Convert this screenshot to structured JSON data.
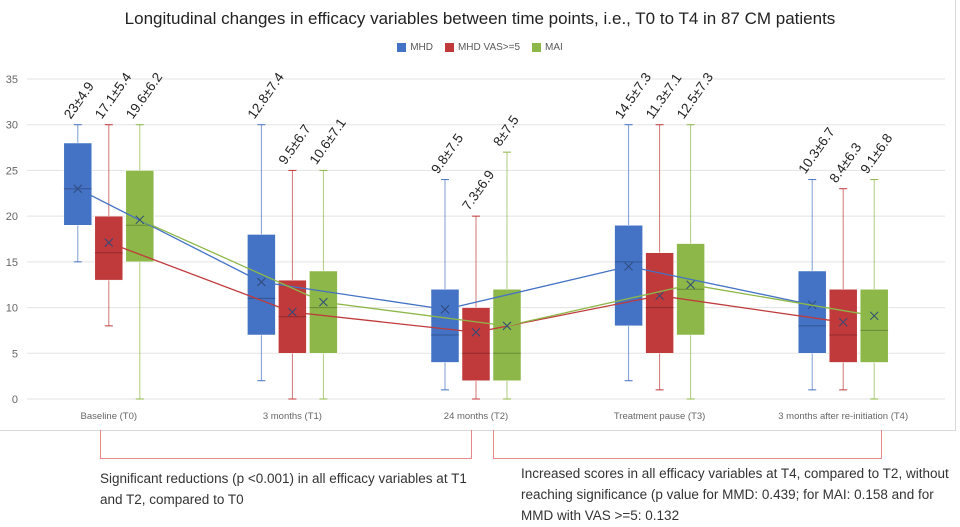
{
  "chart_data": {
    "type": "box",
    "title": "Longitudinal changes in efficacy variables between time points, i.e., T0 to T4 in 87 CM patients",
    "categories": [
      "Baseline (T0)",
      "3 months (T1)",
      "24 months (T2)",
      "Treatment pause (T3)",
      "3 months after re-initiation (T4)"
    ],
    "ylim": [
      0,
      35
    ],
    "yticks": [
      0,
      5,
      10,
      15,
      20,
      25,
      30,
      35
    ],
    "grid": true,
    "legend_position": "top",
    "series": [
      {
        "name": "MHD",
        "color": "#4472c4",
        "min": [
          15,
          2,
          1,
          2,
          1
        ],
        "q1": [
          19,
          7,
          4,
          8,
          5
        ],
        "median": [
          23,
          11,
          7,
          15,
          8
        ],
        "q3": [
          28,
          18,
          12,
          19,
          14
        ],
        "max": [
          30,
          30,
          24,
          30,
          24
        ],
        "mean": [
          23,
          12.8,
          9.8,
          14.5,
          10.3
        ],
        "labels": [
          "23±4.9",
          "12.8±7.4",
          "9.8±7.5",
          "14.5±7.3",
          "10.3±6.7"
        ]
      },
      {
        "name": "MHD VAS>=5",
        "color": "#c0393b",
        "min": [
          8,
          0,
          0,
          1,
          1
        ],
        "q1": [
          13,
          5,
          2,
          5,
          4
        ],
        "median": [
          16,
          9,
          5,
          10,
          7
        ],
        "q3": [
          20,
          13,
          10,
          16,
          12
        ],
        "max": [
          30,
          25,
          20,
          30,
          23
        ],
        "mean": [
          17.1,
          9.5,
          7.3,
          11.3,
          8.4
        ],
        "labels": [
          "17.1±5.4",
          "9.5±6.7",
          "7.3±6.9",
          "11.3±7.1",
          "8.4±6.3"
        ]
      },
      {
        "name": "MAI",
        "color": "#8db748",
        "min": [
          0,
          0,
          0,
          0,
          0
        ],
        "q1": [
          15,
          5,
          2,
          7,
          4
        ],
        "median": [
          19,
          10,
          5,
          12,
          7.5
        ],
        "q3": [
          25,
          14,
          12,
          17,
          12
        ],
        "max": [
          30,
          25,
          27,
          30,
          24
        ],
        "mean": [
          19.6,
          10.6,
          8,
          12.5,
          9.1
        ],
        "labels": [
          "19.6±6.2",
          "10.6±7.1",
          "8±7.5",
          "12.5±7.3",
          "9.1±6.8"
        ]
      }
    ]
  },
  "annotations": {
    "left": "Significant reductions (p <0.001) in all efficacy variables at T1 and T2, compared to T0",
    "right": "Increased scores in all efficacy variables at T4, compared to T2, without reaching significance (p value for MMD: 0.439; for MAI: 0.158 and for MMD with VAS >=5: 0.132",
    "bracket_color": "#e8868a"
  }
}
